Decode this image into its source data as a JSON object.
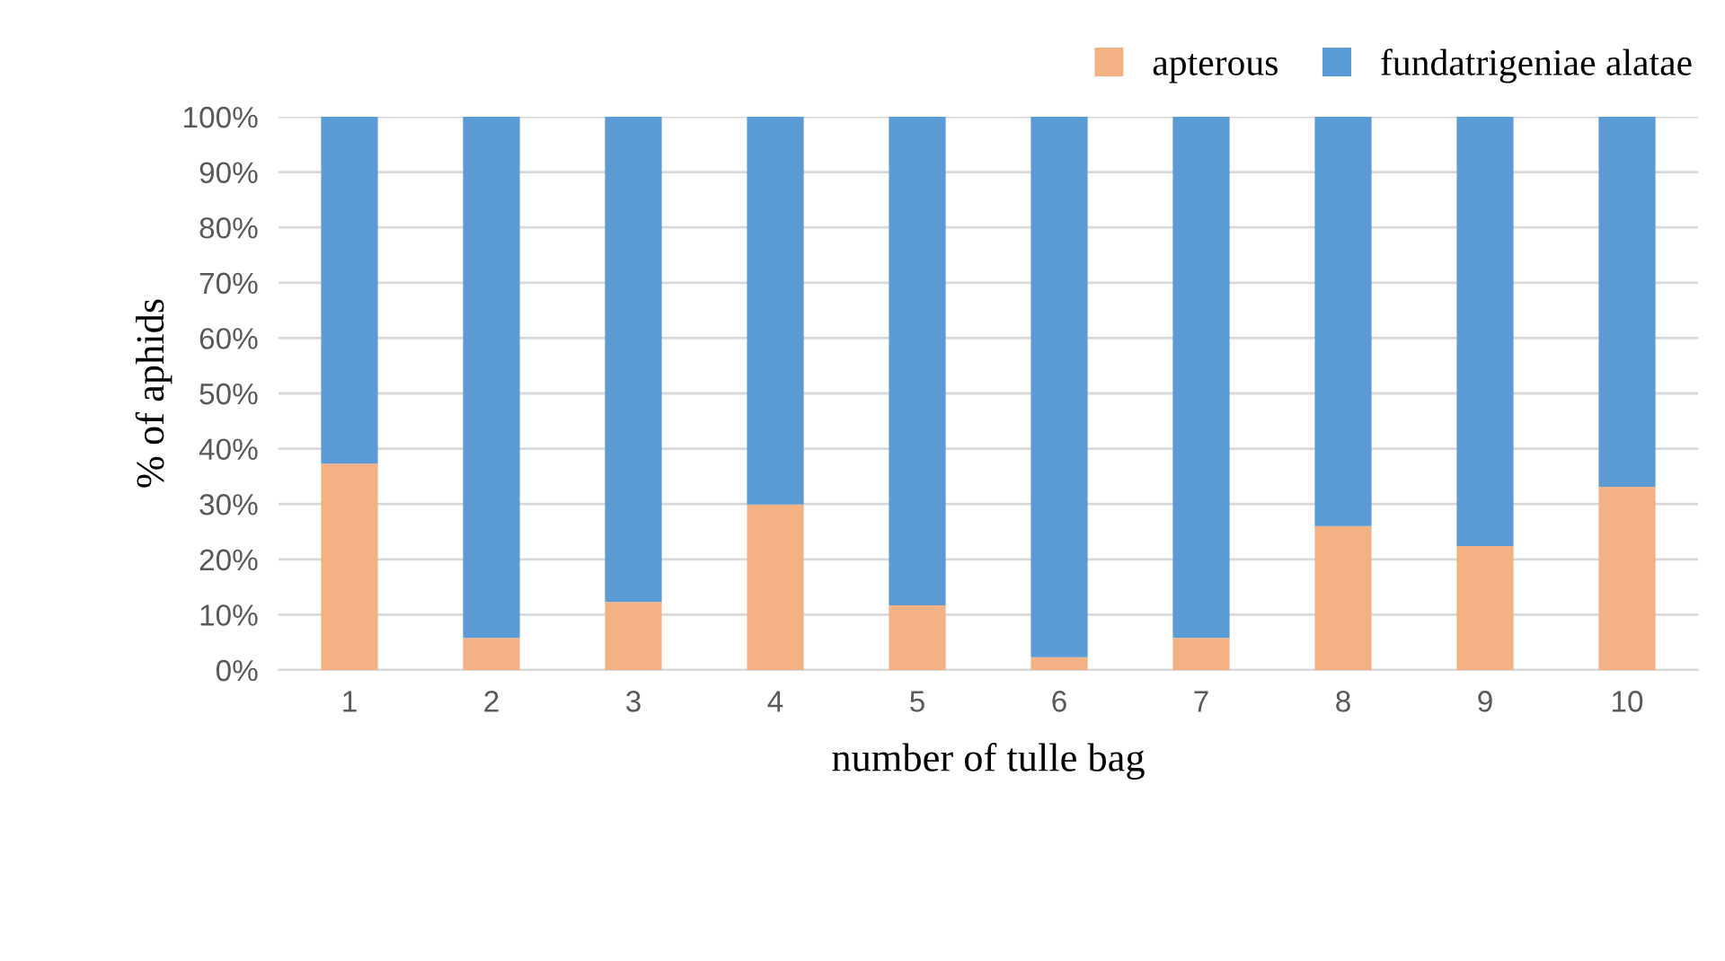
{
  "chart_data": {
    "type": "bar",
    "stacked": true,
    "xlabel": "number of tulle bag",
    "ylabel": "% of aphids",
    "categories": [
      "1",
      "2",
      "3",
      "4",
      "5",
      "6",
      "7",
      "8",
      "9",
      "10"
    ],
    "series": [
      {
        "name": "apterous",
        "color": "#f4b183",
        "values": [
          37.3,
          5.8,
          12.3,
          29.9,
          11.7,
          2.3,
          5.8,
          26,
          22.4,
          33.1
        ]
      },
      {
        "name": "fundatrigeniae alatae",
        "color": "#5b9bd5",
        "values": [
          62.7,
          94.2,
          87.7,
          70.1,
          88.3,
          97.7,
          94.2,
          74,
          77.6,
          66.9
        ]
      }
    ],
    "ylim": [
      0,
      100
    ],
    "yticks": [
      {
        "value": 0,
        "label": "0%"
      },
      {
        "value": 10,
        "label": "10%"
      },
      {
        "value": 20,
        "label": "20%"
      },
      {
        "value": 30,
        "label": "30%"
      },
      {
        "value": 40,
        "label": "40%"
      },
      {
        "value": 50,
        "label": "50%"
      },
      {
        "value": 60,
        "label": "60%"
      },
      {
        "value": 70,
        "label": "70%"
      },
      {
        "value": 80,
        "label": "80%"
      },
      {
        "value": 90,
        "label": "90%"
      },
      {
        "value": 100,
        "label": "100%"
      }
    ],
    "grid": "y",
    "legend": "top right"
  }
}
